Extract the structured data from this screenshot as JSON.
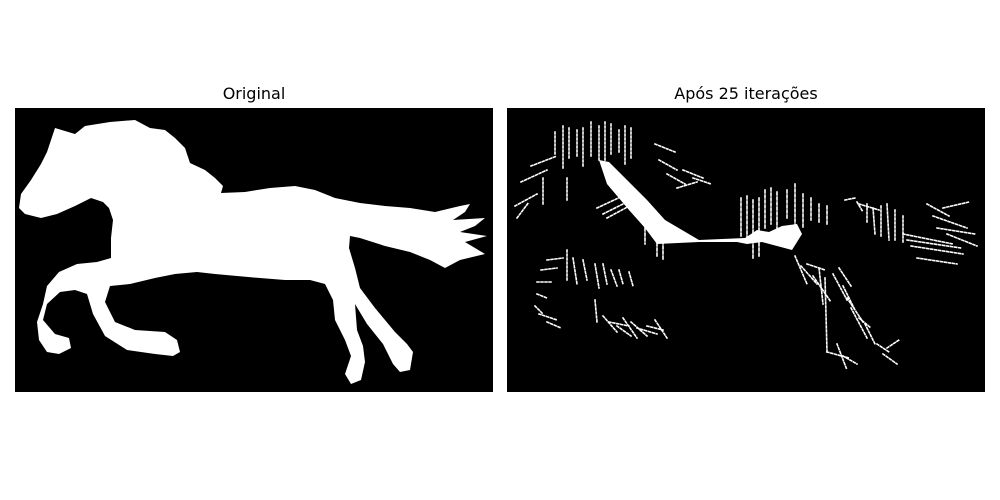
{
  "panels": [
    {
      "title": "Original"
    },
    {
      "title": "Após 25 iterações"
    }
  ],
  "colors": {
    "background": "#000000",
    "foreground": "#ffffff",
    "page": "#ffffff"
  }
}
